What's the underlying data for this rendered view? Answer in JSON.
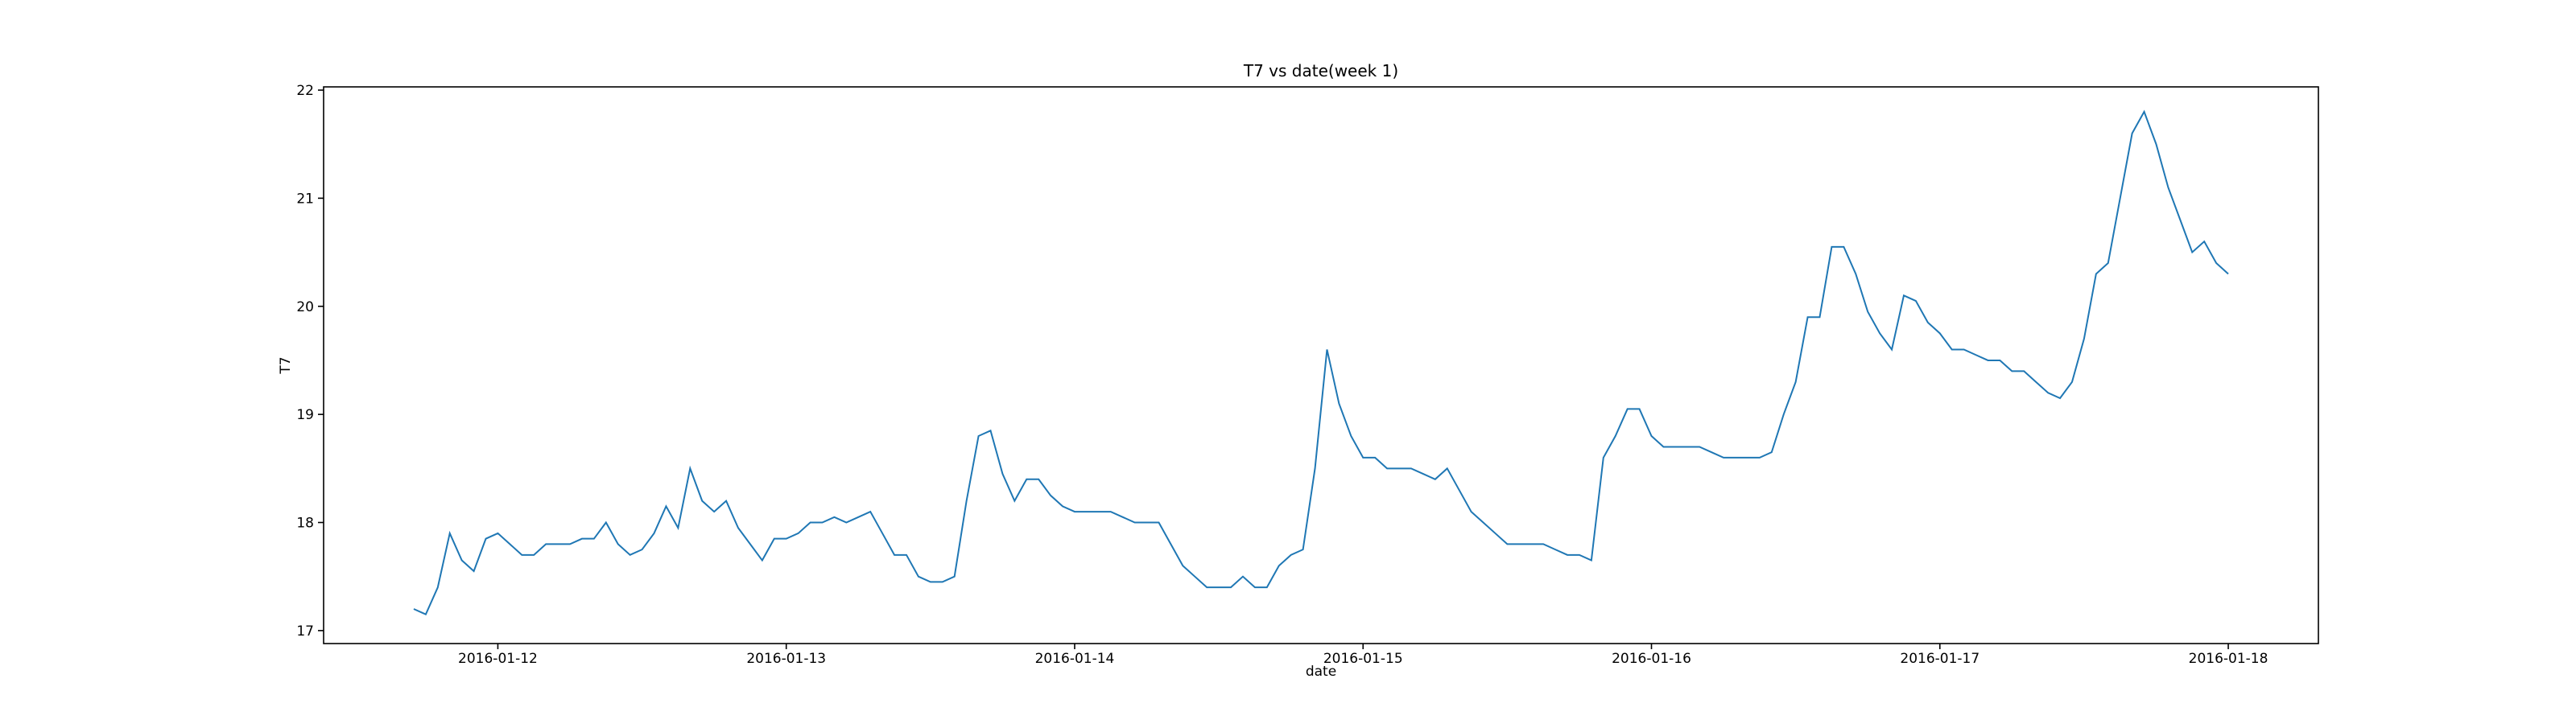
{
  "chart_data": {
    "type": "line",
    "title": "T7 vs date(week 1)",
    "xlabel": "date",
    "ylabel": "T7",
    "color": "#1f77b4",
    "x": [
      "2016-01-11 17:00",
      "2016-01-11 18:00",
      "2016-01-11 19:00",
      "2016-01-11 20:00",
      "2016-01-11 21:00",
      "2016-01-11 22:00",
      "2016-01-11 23:00",
      "2016-01-12 00:00",
      "2016-01-12 01:00",
      "2016-01-12 02:00",
      "2016-01-12 03:00",
      "2016-01-12 04:00",
      "2016-01-12 05:00",
      "2016-01-12 06:00",
      "2016-01-12 07:00",
      "2016-01-12 08:00",
      "2016-01-12 09:00",
      "2016-01-12 10:00",
      "2016-01-12 11:00",
      "2016-01-12 12:00",
      "2016-01-12 13:00",
      "2016-01-12 14:00",
      "2016-01-12 15:00",
      "2016-01-12 16:00",
      "2016-01-12 17:00",
      "2016-01-12 18:00",
      "2016-01-12 19:00",
      "2016-01-12 20:00",
      "2016-01-12 21:00",
      "2016-01-12 22:00",
      "2016-01-12 23:00",
      "2016-01-13 00:00",
      "2016-01-13 01:00",
      "2016-01-13 02:00",
      "2016-01-13 03:00",
      "2016-01-13 04:00",
      "2016-01-13 05:00",
      "2016-01-13 06:00",
      "2016-01-13 07:00",
      "2016-01-13 08:00",
      "2016-01-13 09:00",
      "2016-01-13 10:00",
      "2016-01-13 11:00",
      "2016-01-13 12:00",
      "2016-01-13 13:00",
      "2016-01-13 14:00",
      "2016-01-13 15:00",
      "2016-01-13 16:00",
      "2016-01-13 17:00",
      "2016-01-13 18:00",
      "2016-01-13 19:00",
      "2016-01-13 20:00",
      "2016-01-13 21:00",
      "2016-01-13 22:00",
      "2016-01-13 23:00",
      "2016-01-14 00:00",
      "2016-01-14 01:00",
      "2016-01-14 02:00",
      "2016-01-14 03:00",
      "2016-01-14 04:00",
      "2016-01-14 05:00",
      "2016-01-14 06:00",
      "2016-01-14 07:00",
      "2016-01-14 08:00",
      "2016-01-14 09:00",
      "2016-01-14 10:00",
      "2016-01-14 11:00",
      "2016-01-14 12:00",
      "2016-01-14 13:00",
      "2016-01-14 14:00",
      "2016-01-14 15:00",
      "2016-01-14 16:00",
      "2016-01-14 17:00",
      "2016-01-14 18:00",
      "2016-01-14 19:00",
      "2016-01-14 20:00",
      "2016-01-14 21:00",
      "2016-01-14 22:00",
      "2016-01-14 23:00",
      "2016-01-15 00:00",
      "2016-01-15 01:00",
      "2016-01-15 02:00",
      "2016-01-15 03:00",
      "2016-01-15 04:00",
      "2016-01-15 05:00",
      "2016-01-15 06:00",
      "2016-01-15 07:00",
      "2016-01-15 08:00",
      "2016-01-15 09:00",
      "2016-01-15 10:00",
      "2016-01-15 11:00",
      "2016-01-15 12:00",
      "2016-01-15 13:00",
      "2016-01-15 14:00",
      "2016-01-15 15:00",
      "2016-01-15 16:00",
      "2016-01-15 17:00",
      "2016-01-15 18:00",
      "2016-01-15 19:00",
      "2016-01-15 20:00",
      "2016-01-15 21:00",
      "2016-01-15 22:00",
      "2016-01-15 23:00",
      "2016-01-16 00:00",
      "2016-01-16 01:00",
      "2016-01-16 02:00",
      "2016-01-16 03:00",
      "2016-01-16 04:00",
      "2016-01-16 05:00",
      "2016-01-16 06:00",
      "2016-01-16 07:00",
      "2016-01-16 08:00",
      "2016-01-16 09:00",
      "2016-01-16 10:00",
      "2016-01-16 11:00",
      "2016-01-16 12:00",
      "2016-01-16 13:00",
      "2016-01-16 14:00",
      "2016-01-16 15:00",
      "2016-01-16 16:00",
      "2016-01-16 17:00",
      "2016-01-16 18:00",
      "2016-01-16 19:00",
      "2016-01-16 20:00",
      "2016-01-16 21:00",
      "2016-01-16 22:00",
      "2016-01-16 23:00",
      "2016-01-17 00:00",
      "2016-01-17 01:00",
      "2016-01-17 02:00",
      "2016-01-17 03:00",
      "2016-01-17 04:00",
      "2016-01-17 05:00",
      "2016-01-17 06:00",
      "2016-01-17 07:00",
      "2016-01-17 08:00",
      "2016-01-17 09:00",
      "2016-01-17 10:00",
      "2016-01-17 11:00",
      "2016-01-17 12:00",
      "2016-01-17 13:00",
      "2016-01-17 14:00",
      "2016-01-17 15:00",
      "2016-01-17 16:00",
      "2016-01-17 17:00",
      "2016-01-17 18:00",
      "2016-01-17 19:00",
      "2016-01-17 20:00",
      "2016-01-17 21:00",
      "2016-01-17 22:00",
      "2016-01-17 23:00",
      "2016-01-18 00:00"
    ],
    "values": [
      17.2,
      17.15,
      17.4,
      17.9,
      17.65,
      17.55,
      17.85,
      17.9,
      17.8,
      17.7,
      17.7,
      17.8,
      17.8,
      17.8,
      17.85,
      17.85,
      18.0,
      17.8,
      17.7,
      17.75,
      17.9,
      18.15,
      17.95,
      18.5,
      18.2,
      18.1,
      18.2,
      17.95,
      17.8,
      17.65,
      17.85,
      17.85,
      17.9,
      18.0,
      18.0,
      18.05,
      18.0,
      18.05,
      18.1,
      17.9,
      17.7,
      17.7,
      17.5,
      17.45,
      17.45,
      17.5,
      18.2,
      18.8,
      18.85,
      18.45,
      18.2,
      18.4,
      18.4,
      18.25,
      18.15,
      18.1,
      18.1,
      18.1,
      18.1,
      18.05,
      18.0,
      18.0,
      18.0,
      17.8,
      17.6,
      17.5,
      17.4,
      17.4,
      17.4,
      17.5,
      17.4,
      17.4,
      17.6,
      17.7,
      17.75,
      18.5,
      19.6,
      19.1,
      18.8,
      18.6,
      18.6,
      18.5,
      18.5,
      18.5,
      18.45,
      18.4,
      18.5,
      18.3,
      18.1,
      18.0,
      17.9,
      17.8,
      17.8,
      17.8,
      17.8,
      17.75,
      17.7,
      17.7,
      17.65,
      18.6,
      18.8,
      19.05,
      19.05,
      18.8,
      18.7,
      18.7,
      18.7,
      18.7,
      18.65,
      18.6,
      18.6,
      18.6,
      18.6,
      18.65,
      19.0,
      19.3,
      19.9,
      19.9,
      20.55,
      20.55,
      20.3,
      19.95,
      19.75,
      19.6,
      20.1,
      20.05,
      19.85,
      19.75,
      19.6,
      19.6,
      19.55,
      19.5,
      19.5,
      19.4,
      19.4,
      19.3,
      19.2,
      19.15,
      19.3,
      19.7,
      20.3,
      20.4,
      21.0,
      21.6,
      21.8,
      21.5,
      21.1,
      20.8,
      20.5,
      20.6,
      20.4,
      20.3
    ],
    "xlim": [
      "2016-01-11 09:30",
      "2016-01-18 07:30"
    ],
    "xticks": [
      "2016-01-12",
      "2016-01-13",
      "2016-01-14",
      "2016-01-15",
      "2016-01-16",
      "2016-01-17",
      "2016-01-18"
    ],
    "ylim": [
      16.88,
      22.03
    ],
    "yticks": [
      17,
      18,
      19,
      20,
      21,
      22
    ],
    "grid": false
  }
}
